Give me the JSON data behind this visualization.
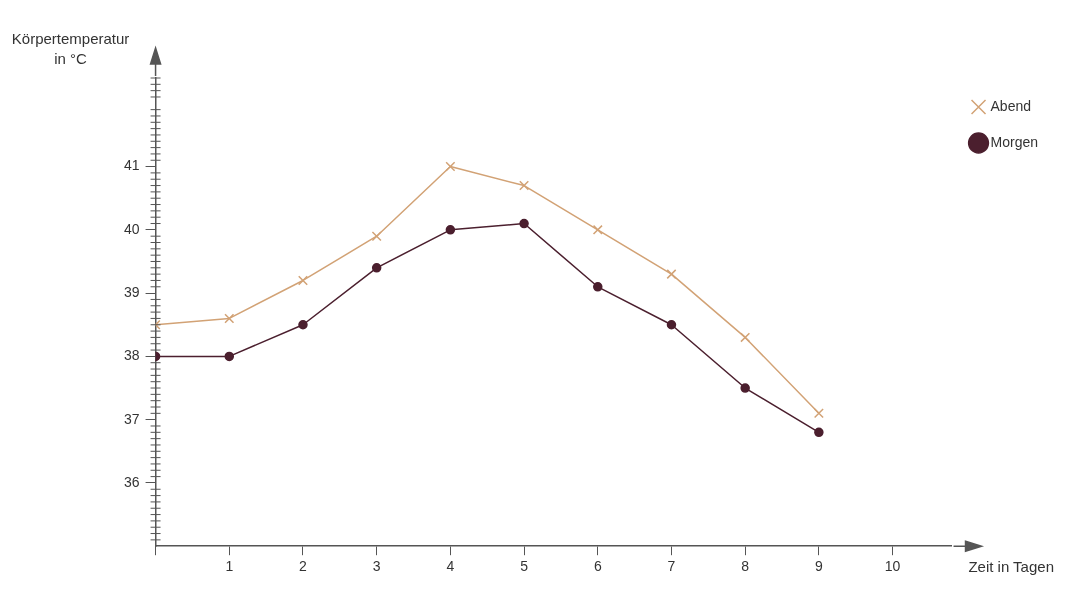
{
  "chart_data": {
    "type": "line",
    "xlabel": "Zeit in Tagen",
    "ylabel": "Körpertemperatur in °C",
    "x": [
      0,
      1,
      2,
      3,
      4,
      5,
      6,
      7,
      8,
      9
    ],
    "xlim": [
      0,
      10.8
    ],
    "xticks": [
      {
        "value": 0,
        "label": null
      },
      1,
      2,
      3,
      4,
      5,
      6,
      7,
      8,
      9,
      10
    ],
    "ylim": [
      35,
      42.4
    ],
    "yticks": [
      36,
      37,
      38,
      39,
      40,
      41
    ],
    "grid": false,
    "legend": "right",
    "line_style": "solid",
    "series": [
      {
        "name": "Abend",
        "color": "#d2a275",
        "marker": "cross",
        "values": [
          38.5,
          38.6,
          39.2,
          39.9,
          41.0,
          40.7,
          40.0,
          39.3,
          38.3,
          37.1
        ]
      },
      {
        "name": "Morgen",
        "color": "#4b1f2e",
        "marker": "circle",
        "values": [
          38.0,
          38.0,
          38.5,
          39.4,
          40.0,
          40.1,
          39.1,
          38.5,
          37.5,
          36.8
        ]
      }
    ]
  }
}
